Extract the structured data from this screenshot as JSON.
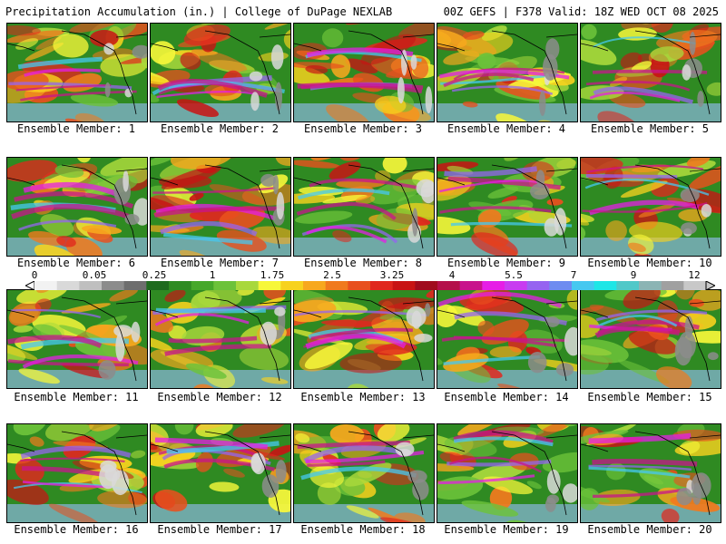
{
  "header": {
    "left_title": "Precipitation Accumulation (in.) | College of DuPage NEXLAB",
    "right_title": "00Z GEFS | F378 Valid: 18Z WED OCT 08 2025"
  },
  "panels": [
    {
      "caption": "Ensemble Member: 1"
    },
    {
      "caption": "Ensemble Member: 2"
    },
    {
      "caption": "Ensemble Member: 3"
    },
    {
      "caption": "Ensemble Member: 4"
    },
    {
      "caption": "Ensemble Member: 5"
    },
    {
      "caption": "Ensemble Member: 6"
    },
    {
      "caption": "Ensemble Member: 7"
    },
    {
      "caption": "Ensemble Member: 8"
    },
    {
      "caption": "Ensemble Member: 9"
    },
    {
      "caption": "Ensemble Member: 10"
    },
    {
      "caption": "Ensemble Member: 11"
    },
    {
      "caption": "Ensemble Member: 12"
    },
    {
      "caption": "Ensemble Member: 13"
    },
    {
      "caption": "Ensemble Member: 14"
    },
    {
      "caption": "Ensemble Member: 15"
    },
    {
      "caption": "Ensemble Member: 16"
    },
    {
      "caption": "Ensemble Member: 17"
    },
    {
      "caption": "Ensemble Member: 18"
    },
    {
      "caption": "Ensemble Member: 19"
    },
    {
      "caption": "Ensemble Member: 20"
    }
  ],
  "color_scale": {
    "labels": [
      "0",
      "0.05",
      "0.25",
      "1",
      "1.75",
      "2.5",
      "3.25",
      "4",
      "5.5",
      "7",
      "9",
      "12"
    ],
    "colors": [
      "#f2f2f2",
      "#d9d9d9",
      "#bfbfbf",
      "#8c8c8c",
      "#6e6e6e",
      "#1e6b1e",
      "#2e8b22",
      "#46a82a",
      "#6cc23a",
      "#a8d83c",
      "#f7f73a",
      "#f7d21e",
      "#f7a81e",
      "#f07a1e",
      "#e8501e",
      "#e0281e",
      "#c81414",
      "#a00c1e",
      "#b4104a",
      "#c8148c",
      "#e61ee6",
      "#c83cf0",
      "#9664f0",
      "#6e8cf0",
      "#46c8f0",
      "#1ee6e6",
      "#50c8c8",
      "#8cb4b4",
      "#a0a0a0",
      "#c8c8c8"
    ]
  }
}
